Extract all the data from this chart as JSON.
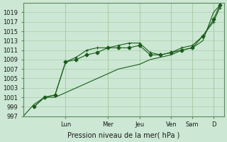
{
  "title": "",
  "xlabel": "Pression niveau de la mer( hPa )",
  "ylabel": "",
  "background_color": "#cce8d4",
  "grid_color": "#aaccaa",
  "line_color": "#1a5c1a",
  "ylim": [
    997,
    1021
  ],
  "yticks": [
    997,
    999,
    1001,
    1003,
    1005,
    1007,
    1009,
    1011,
    1013,
    1015,
    1017,
    1019
  ],
  "day_labels": [
    "Lun",
    "Mer",
    "Jeu",
    "Ven",
    "Sam",
    "D"
  ],
  "day_positions": [
    2.0,
    4.0,
    5.5,
    7.0,
    8.0,
    9.0
  ],
  "line1_x": [
    0,
    0.5,
    1.0,
    1.5,
    2.0,
    2.5,
    3.0,
    3.5,
    4.0,
    4.5,
    5.0,
    5.5,
    6.0,
    6.5,
    7.0,
    7.5,
    8.0,
    8.5,
    9.0,
    9.3
  ],
  "line1_y": [
    997,
    999.5,
    1001,
    1001,
    1002,
    1003,
    1004,
    1005,
    1006,
    1007,
    1007.5,
    1008,
    1009,
    1009.5,
    1010,
    1011,
    1011.5,
    1013,
    1019,
    1020.5
  ],
  "line2_x": [
    0.5,
    1.0,
    1.5,
    2.0,
    2.5,
    3.0,
    3.5,
    4.0,
    4.5,
    5.0,
    5.5,
    6.0,
    6.5,
    7.0,
    7.5,
    8.0,
    8.5,
    9.0,
    9.3
  ],
  "line2_y": [
    999,
    1001,
    1001.5,
    1008.5,
    1009,
    1010,
    1010.5,
    1011.5,
    1011.5,
    1011.5,
    1012,
    1010,
    1010,
    1010.5,
    1011,
    1011.5,
    1014,
    1017.5,
    1020.5
  ],
  "line3_x": [
    0.5,
    1.0,
    1.5,
    2.0,
    2.5,
    3.0,
    3.5,
    4.0,
    4.5,
    5.0,
    5.5,
    6.0,
    6.5,
    7.0,
    7.5,
    8.0,
    8.5,
    9.0,
    9.3
  ],
  "line3_y": [
    999,
    1001,
    1001.5,
    1008.5,
    1009.5,
    1011,
    1011.5,
    1011.5,
    1012,
    1012.5,
    1012.5,
    1010.5,
    1010,
    1010.5,
    1011.5,
    1012,
    1014,
    1017,
    1020
  ]
}
